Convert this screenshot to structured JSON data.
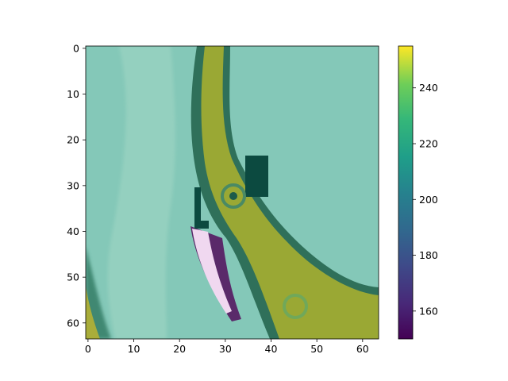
{
  "chart_data": {
    "type": "heatmap",
    "title": "",
    "xlabel": "",
    "ylabel": "",
    "image_size": [
      64,
      64
    ],
    "xlim": [
      -0.5,
      63.5
    ],
    "ylim": [
      63.5,
      -0.5
    ],
    "origin": "upper",
    "x_ticks": [
      0,
      10,
      20,
      30,
      40,
      50,
      60
    ],
    "y_ticks": [
      0,
      10,
      20,
      30,
      40,
      50,
      60
    ],
    "x_tick_labels": [
      "0",
      "10",
      "20",
      "30",
      "40",
      "50",
      "60"
    ],
    "y_tick_labels": [
      "0",
      "10",
      "20",
      "30",
      "40",
      "50",
      "60"
    ],
    "colorbar": {
      "colormap": "viridis",
      "range": [
        150,
        255
      ],
      "ticks": [
        160,
        180,
        200,
        220,
        240
      ],
      "tick_labels": [
        "160",
        "180",
        "200",
        "220",
        "240"
      ]
    },
    "grid": false,
    "description_colors": {
      "background_teal": "#7fc7b5",
      "olive_band": "#9aa834",
      "dark_edge": "#2f6f5a",
      "highlight_pink": "#f0d8f0",
      "dark_teal_patch": "#0c4a40"
    }
  }
}
